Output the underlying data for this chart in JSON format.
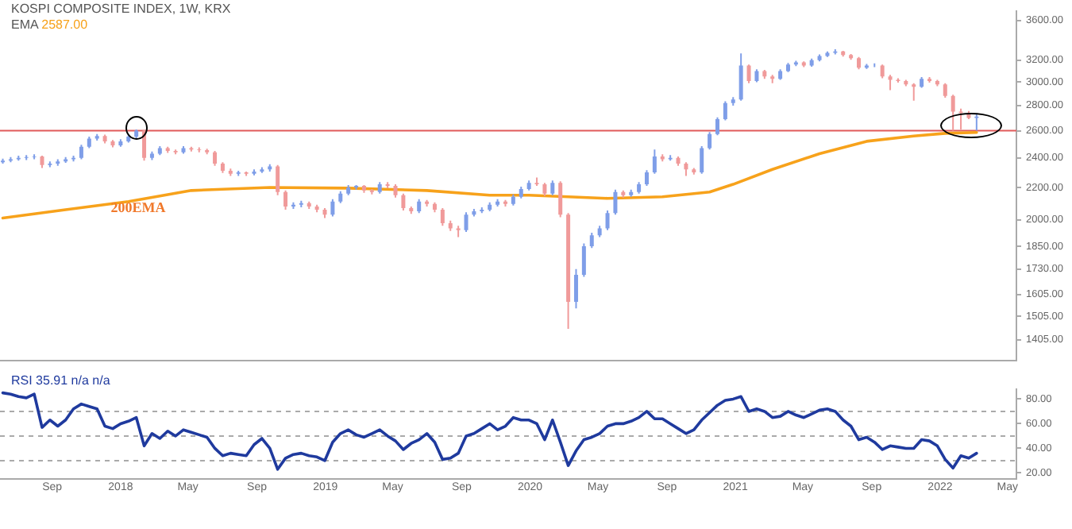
{
  "chart_data": [
    {
      "type": "candlestick",
      "title": "KOSPI COMPOSITE INDEX, 1W, KRX",
      "subtitle": "EMA 2587.00",
      "x": [
        "2017-06-05",
        "2017-06-19",
        "2017-07-03",
        "2017-07-17",
        "2017-07-31",
        "2017-08-14",
        "2017-08-28",
        "2017-09-11",
        "2017-09-25",
        "2017-10-09",
        "2017-10-23",
        "2017-11-06",
        "2017-11-20",
        "2017-12-04",
        "2017-12-18",
        "2018-01-01",
        "2018-01-15",
        "2018-01-29",
        "2018-02-12",
        "2018-02-26",
        "2018-03-12",
        "2018-03-26",
        "2018-04-09",
        "2018-04-23",
        "2018-05-07",
        "2018-05-21",
        "2018-06-04",
        "2018-06-18",
        "2018-07-02",
        "2018-07-16",
        "2018-07-30",
        "2018-08-13",
        "2018-08-27",
        "2018-09-10",
        "2018-09-24",
        "2018-10-08",
        "2018-10-22",
        "2018-11-05",
        "2018-11-19",
        "2018-12-03",
        "2018-12-17",
        "2018-12-31",
        "2019-01-14",
        "2019-01-28",
        "2019-02-11",
        "2019-02-25",
        "2019-03-11",
        "2019-03-25",
        "2019-04-08",
        "2019-04-22",
        "2019-05-06",
        "2019-05-20",
        "2019-06-03",
        "2019-06-17",
        "2019-07-01",
        "2019-07-15",
        "2019-07-29",
        "2019-08-12",
        "2019-08-26",
        "2019-09-09",
        "2019-09-23",
        "2019-10-07",
        "2019-10-21",
        "2019-11-04",
        "2019-11-18",
        "2019-12-02",
        "2019-12-16",
        "2019-12-30",
        "2020-01-13",
        "2020-01-27",
        "2020-02-10",
        "2020-02-24",
        "2020-03-09",
        "2020-03-23",
        "2020-04-06",
        "2020-04-20",
        "2020-05-04",
        "2020-05-18",
        "2020-06-01",
        "2020-06-15",
        "2020-06-29",
        "2020-07-13",
        "2020-07-27",
        "2020-08-10",
        "2020-08-24",
        "2020-09-07",
        "2020-09-21",
        "2020-10-05",
        "2020-10-19",
        "2020-11-02",
        "2020-11-16",
        "2020-11-30",
        "2020-12-14",
        "2020-12-28",
        "2021-01-11",
        "2021-01-25",
        "2021-02-08",
        "2021-02-22",
        "2021-03-08",
        "2021-03-22",
        "2021-04-05",
        "2021-04-19",
        "2021-05-03",
        "2021-05-17",
        "2021-05-31",
        "2021-06-14",
        "2021-06-28",
        "2021-07-12",
        "2021-07-26",
        "2021-08-09",
        "2021-08-23",
        "2021-09-06",
        "2021-09-20",
        "2021-10-04",
        "2021-10-18",
        "2021-11-01",
        "2021-11-15",
        "2021-11-29",
        "2021-12-13",
        "2021-12-27",
        "2022-01-10",
        "2022-01-24",
        "2022-02-07",
        "2022-02-21",
        "2022-03-07"
      ],
      "ohlc": [
        [
          2370,
          2395,
          2360,
          2380
        ],
        [
          2380,
          2405,
          2370,
          2390
        ],
        [
          2390,
          2415,
          2380,
          2400
        ],
        [
          2400,
          2420,
          2385,
          2405
        ],
        [
          2405,
          2425,
          2390,
          2410
        ],
        [
          2410,
          2415,
          2330,
          2350
        ],
        [
          2350,
          2375,
          2335,
          2360
        ],
        [
          2360,
          2390,
          2345,
          2375
        ],
        [
          2375,
          2405,
          2365,
          2390
        ],
        [
          2390,
          2415,
          2375,
          2400
        ],
        [
          2400,
          2495,
          2390,
          2480
        ],
        [
          2480,
          2555,
          2470,
          2540
        ],
        [
          2540,
          2575,
          2525,
          2560
        ],
        [
          2560,
          2570,
          2505,
          2520
        ],
        [
          2520,
          2530,
          2475,
          2490
        ],
        [
          2490,
          2535,
          2480,
          2520
        ],
        [
          2520,
          2570,
          2510,
          2555
        ],
        [
          2555,
          2610,
          2540,
          2600
        ],
        [
          2600,
          2605,
          2380,
          2400
        ],
        [
          2400,
          2445,
          2385,
          2430
        ],
        [
          2430,
          2485,
          2420,
          2470
        ],
        [
          2470,
          2480,
          2435,
          2450
        ],
        [
          2450,
          2460,
          2425,
          2440
        ],
        [
          2440,
          2485,
          2430,
          2470
        ],
        [
          2470,
          2480,
          2445,
          2460
        ],
        [
          2460,
          2475,
          2440,
          2455
        ],
        [
          2455,
          2465,
          2425,
          2440
        ],
        [
          2440,
          2450,
          2345,
          2360
        ],
        [
          2360,
          2370,
          2295,
          2310
        ],
        [
          2310,
          2325,
          2275,
          2290
        ],
        [
          2290,
          2310,
          2275,
          2300
        ],
        [
          2300,
          2305,
          2275,
          2290
        ],
        [
          2290,
          2320,
          2280,
          2305
        ],
        [
          2305,
          2335,
          2295,
          2320
        ],
        [
          2320,
          2355,
          2305,
          2340
        ],
        [
          2340,
          2350,
          2150,
          2170
        ],
        [
          2170,
          2180,
          2060,
          2080
        ],
        [
          2080,
          2105,
          2065,
          2090
        ],
        [
          2090,
          2115,
          2075,
          2100
        ],
        [
          2100,
          2110,
          2065,
          2080
        ],
        [
          2080,
          2090,
          2045,
          2060
        ],
        [
          2060,
          2070,
          2010,
          2030
        ],
        [
          2030,
          2125,
          2020,
          2110
        ],
        [
          2110,
          2175,
          2100,
          2160
        ],
        [
          2160,
          2215,
          2150,
          2200
        ],
        [
          2200,
          2215,
          2185,
          2210
        ],
        [
          2210,
          2215,
          2165,
          2180
        ],
        [
          2180,
          2190,
          2155,
          2170
        ],
        [
          2170,
          2235,
          2160,
          2220
        ],
        [
          2220,
          2235,
          2195,
          2210
        ],
        [
          2210,
          2220,
          2135,
          2150
        ],
        [
          2150,
          2160,
          2055,
          2070
        ],
        [
          2070,
          2080,
          2035,
          2050
        ],
        [
          2050,
          2125,
          2040,
          2110
        ],
        [
          2110,
          2120,
          2080,
          2095
        ],
        [
          2095,
          2105,
          2045,
          2060
        ],
        [
          2060,
          2070,
          1965,
          1980
        ],
        [
          1980,
          1995,
          1935,
          1950
        ],
        [
          1950,
          1965,
          1900,
          1940
        ],
        [
          1940,
          2045,
          1930,
          2030
        ],
        [
          2030,
          2065,
          2020,
          2050
        ],
        [
          2050,
          2075,
          2040,
          2060
        ],
        [
          2060,
          2105,
          2050,
          2090
        ],
        [
          2090,
          2125,
          2080,
          2110
        ],
        [
          2110,
          2120,
          2080,
          2095
        ],
        [
          2095,
          2155,
          2085,
          2140
        ],
        [
          2140,
          2205,
          2130,
          2190
        ],
        [
          2190,
          2245,
          2180,
          2230
        ],
        [
          2230,
          2265,
          2210,
          2220
        ],
        [
          2220,
          2230,
          2145,
          2160
        ],
        [
          2160,
          2245,
          2150,
          2230
        ],
        [
          2230,
          2240,
          2015,
          2030
        ],
        [
          2030,
          2040,
          1450,
          1570
        ],
        [
          1570,
          1730,
          1540,
          1700
        ],
        [
          1700,
          1865,
          1690,
          1850
        ],
        [
          1850,
          1925,
          1840,
          1910
        ],
        [
          1910,
          1965,
          1900,
          1950
        ],
        [
          1950,
          2055,
          1940,
          2040
        ],
        [
          2040,
          2185,
          2030,
          2170
        ],
        [
          2170,
          2180,
          2135,
          2150
        ],
        [
          2150,
          2185,
          2140,
          2170
        ],
        [
          2170,
          2235,
          2160,
          2220
        ],
        [
          2220,
          2315,
          2210,
          2300
        ],
        [
          2300,
          2460,
          2290,
          2410
        ],
        [
          2410,
          2425,
          2375,
          2390
        ],
        [
          2390,
          2420,
          2380,
          2400
        ],
        [
          2400,
          2410,
          2345,
          2360
        ],
        [
          2360,
          2370,
          2275,
          2320
        ],
        [
          2320,
          2330,
          2285,
          2300
        ],
        [
          2300,
          2485,
          2290,
          2470
        ],
        [
          2470,
          2590,
          2460,
          2575
        ],
        [
          2575,
          2705,
          2565,
          2690
        ],
        [
          2690,
          2835,
          2680,
          2820
        ],
        [
          2820,
          2870,
          2800,
          2850
        ],
        [
          2850,
          3265,
          2840,
          3150
        ],
        [
          3150,
          3160,
          2990,
          3010
        ],
        [
          3010,
          3115,
          3000,
          3100
        ],
        [
          3100,
          3110,
          3030,
          3050
        ],
        [
          3050,
          3065,
          2990,
          3030
        ],
        [
          3030,
          3115,
          3020,
          3100
        ],
        [
          3100,
          3175,
          3090,
          3160
        ],
        [
          3160,
          3195,
          3145,
          3180
        ],
        [
          3180,
          3190,
          3135,
          3150
        ],
        [
          3150,
          3215,
          3140,
          3200
        ],
        [
          3200,
          3255,
          3190,
          3240
        ],
        [
          3240,
          3285,
          3230,
          3270
        ],
        [
          3270,
          3305,
          3255,
          3285
        ],
        [
          3285,
          3290,
          3235,
          3250
        ],
        [
          3250,
          3260,
          3205,
          3220
        ],
        [
          3220,
          3230,
          3115,
          3130
        ],
        [
          3130,
          3165,
          3120,
          3150
        ],
        [
          3150,
          3170,
          3135,
          3150
        ],
        [
          3150,
          3160,
          3035,
          3050
        ],
        [
          3050,
          3065,
          2930,
          3020
        ],
        [
          3020,
          3035,
          2995,
          3010
        ],
        [
          3010,
          3020,
          2965,
          2980
        ],
        [
          2980,
          2990,
          2840,
          2960
        ],
        [
          2960,
          3045,
          2950,
          3030
        ],
        [
          3030,
          3045,
          2995,
          3010
        ],
        [
          3010,
          3020,
          2965,
          2980
        ],
        [
          2980,
          2990,
          2865,
          2880
        ],
        [
          2880,
          2890,
          2600,
          2750
        ],
        [
          2750,
          2775,
          2610,
          2740
        ],
        [
          2740,
          2755,
          2690,
          2700
        ],
        [
          2700,
          2730,
          2600,
          2710
        ]
      ],
      "series": [
        {
          "type": "line",
          "color": "#f7a21b",
          "x": [
            "2017-06-05",
            "2017-09-25",
            "2018-01-15",
            "2018-05-07",
            "2018-09-24",
            "2019-02-11",
            "2019-07-01",
            "2019-10-21",
            "2019-12-30",
            "2020-03-09",
            "2020-05-18",
            "2020-08-24",
            "2020-11-16",
            "2020-12-28",
            "2021-03-08",
            "2021-05-31",
            "2021-08-23",
            "2021-11-15",
            "2022-01-10",
            "2022-03-07"
          ],
          "values": [
            2010,
            2060,
            2110,
            2180,
            2200,
            2195,
            2180,
            2150,
            2150,
            2140,
            2130,
            2140,
            2170,
            2220,
            2320,
            2430,
            2520,
            2560,
            2580,
            2587
          ]
        }
      ],
      "log": true,
      "xlim": [
        "2017-05-31",
        "2022-05-17"
      ],
      "ylim": [
        1320,
        3700
      ],
      "yticks": [
        {
          "value": 1405,
          "label": "1405.00"
        },
        {
          "value": 1505,
          "label": "1505.00"
        },
        {
          "value": 1605,
          "label": "1605.00"
        },
        {
          "value": 1730,
          "label": "1730.00"
        },
        {
          "value": 1850,
          "label": "1850.00"
        },
        {
          "value": 2000,
          "label": "2000.00"
        },
        {
          "value": 2200,
          "label": "2200.00"
        },
        {
          "value": 2400,
          "label": "2400.00"
        },
        {
          "value": 2600,
          "label": "2600.00"
        },
        {
          "value": 2800,
          "label": "2800.00"
        },
        {
          "value": 3000,
          "label": "3000.00"
        },
        {
          "value": 3200,
          "label": "3200.00"
        },
        {
          "value": 3600,
          "label": "3600.00"
        }
      ],
      "tick_labels": "y",
      "ref_lines": [
        {
          "axis": "y",
          "value": 2600,
          "color": "#e05a5a"
        }
      ],
      "annotations": [
        "200EMA"
      ]
    },
    {
      "type": "line",
      "title": "RSI 35.91 n/a n/a",
      "x": [
        "2017-06-05",
        "2017-06-19",
        "2017-07-03",
        "2017-07-17",
        "2017-07-31",
        "2017-08-14",
        "2017-08-28",
        "2017-09-11",
        "2017-09-25",
        "2017-10-09",
        "2017-10-23",
        "2017-11-06",
        "2017-11-20",
        "2017-12-04",
        "2017-12-18",
        "2018-01-01",
        "2018-01-15",
        "2018-01-29",
        "2018-02-12",
        "2018-02-26",
        "2018-03-12",
        "2018-03-26",
        "2018-04-09",
        "2018-04-23",
        "2018-05-07",
        "2018-05-21",
        "2018-06-04",
        "2018-06-18",
        "2018-07-02",
        "2018-07-16",
        "2018-07-30",
        "2018-08-13",
        "2018-08-27",
        "2018-09-10",
        "2018-09-24",
        "2018-10-08",
        "2018-10-22",
        "2018-11-05",
        "2018-11-19",
        "2018-12-03",
        "2018-12-17",
        "2018-12-31",
        "2019-01-14",
        "2019-01-28",
        "2019-02-11",
        "2019-02-25",
        "2019-03-11",
        "2019-03-25",
        "2019-04-08",
        "2019-04-22",
        "2019-05-06",
        "2019-05-20",
        "2019-06-03",
        "2019-06-17",
        "2019-07-01",
        "2019-07-15",
        "2019-07-29",
        "2019-08-12",
        "2019-08-26",
        "2019-09-09",
        "2019-09-23",
        "2019-10-07",
        "2019-10-21",
        "2019-11-04",
        "2019-11-18",
        "2019-12-02",
        "2019-12-16",
        "2019-12-30",
        "2020-01-13",
        "2020-01-27",
        "2020-02-10",
        "2020-02-24",
        "2020-03-09",
        "2020-03-23",
        "2020-04-06",
        "2020-04-20",
        "2020-05-04",
        "2020-05-18",
        "2020-06-01",
        "2020-06-15",
        "2020-06-29",
        "2020-07-13",
        "2020-07-27",
        "2020-08-10",
        "2020-08-24",
        "2020-09-07",
        "2020-09-21",
        "2020-10-05",
        "2020-10-19",
        "2020-11-02",
        "2020-11-16",
        "2020-11-30",
        "2020-12-14",
        "2020-12-28",
        "2021-01-11",
        "2021-01-25",
        "2021-02-08",
        "2021-02-22",
        "2021-03-08",
        "2021-03-22",
        "2021-04-05",
        "2021-04-19",
        "2021-05-03",
        "2021-05-17",
        "2021-05-31",
        "2021-06-14",
        "2021-06-28",
        "2021-07-12",
        "2021-07-26",
        "2021-08-09",
        "2021-08-23",
        "2021-09-06",
        "2021-09-20",
        "2021-10-04",
        "2021-10-18",
        "2021-11-01",
        "2021-11-15",
        "2021-11-29",
        "2021-12-13",
        "2021-12-27",
        "2022-01-10",
        "2022-01-24",
        "2022-02-07",
        "2022-02-21",
        "2022-03-07"
      ],
      "series": [
        {
          "color": "#1f3a9e",
          "values": [
            85,
            84,
            82,
            81,
            84,
            57,
            63,
            58,
            63,
            72,
            76,
            74,
            72,
            58,
            56,
            60,
            62,
            65,
            42,
            52,
            48,
            54,
            50,
            55,
            53,
            51,
            49,
            40,
            34,
            36,
            35,
            34,
            43,
            48,
            40,
            23,
            32,
            35,
            36,
            34,
            33,
            30,
            45,
            52,
            55,
            51,
            49,
            52,
            55,
            50,
            46,
            39,
            44,
            47,
            52,
            45,
            31,
            32,
            36,
            50,
            52,
            56,
            60,
            55,
            58,
            65,
            63,
            63,
            60,
            47,
            63,
            45,
            26,
            38,
            47,
            49,
            52,
            58,
            60,
            60,
            62,
            65,
            70,
            64,
            64,
            60,
            56,
            52,
            55,
            63,
            69,
            75,
            79,
            80,
            82,
            70,
            72,
            70,
            65,
            66,
            70,
            67,
            65,
            68,
            71,
            72,
            70,
            63,
            58,
            47,
            49,
            45,
            39,
            42,
            41,
            40,
            40,
            47,
            46,
            42,
            31,
            24,
            34,
            32,
            36
          ]
        }
      ],
      "xlim": [
        "2017-05-31",
        "2022-05-17"
      ],
      "xticks": [
        {
          "value": "2017-09-01",
          "label": "Sep"
        },
        {
          "value": "2018-01-01",
          "label": "2018"
        },
        {
          "value": "2018-05-01",
          "label": "May"
        },
        {
          "value": "2018-09-01",
          "label": "Sep"
        },
        {
          "value": "2019-01-01",
          "label": "2019"
        },
        {
          "value": "2019-05-01",
          "label": "May"
        },
        {
          "value": "2019-09-01",
          "label": "Sep"
        },
        {
          "value": "2020-01-01",
          "label": "2020"
        },
        {
          "value": "2020-05-01",
          "label": "May"
        },
        {
          "value": "2020-09-01",
          "label": "Sep"
        },
        {
          "value": "2021-01-01",
          "label": "2021"
        },
        {
          "value": "2021-05-01",
          "label": "May"
        },
        {
          "value": "2021-09-01",
          "label": "Sep"
        },
        {
          "value": "2022-01-01",
          "label": "2022"
        },
        {
          "value": "2022-05-01",
          "label": "May"
        }
      ],
      "ylim": [
        15,
        88
      ],
      "yticks": [
        {
          "value": 20,
          "label": "20.00"
        },
        {
          "value": 40,
          "label": "40.00"
        },
        {
          "value": 60,
          "label": "60.00"
        },
        {
          "value": 80,
          "label": "80.00"
        }
      ],
      "ref_lines": [
        {
          "axis": "y",
          "value": 30,
          "color": "#aaaaaa",
          "line_style": "dashed"
        },
        {
          "axis": "y",
          "value": 50,
          "color": "#aaaaaa",
          "line_style": "dashed"
        },
        {
          "axis": "y",
          "value": 70,
          "color": "#aaaaaa",
          "line_style": "dashed"
        }
      ]
    }
  ]
}
